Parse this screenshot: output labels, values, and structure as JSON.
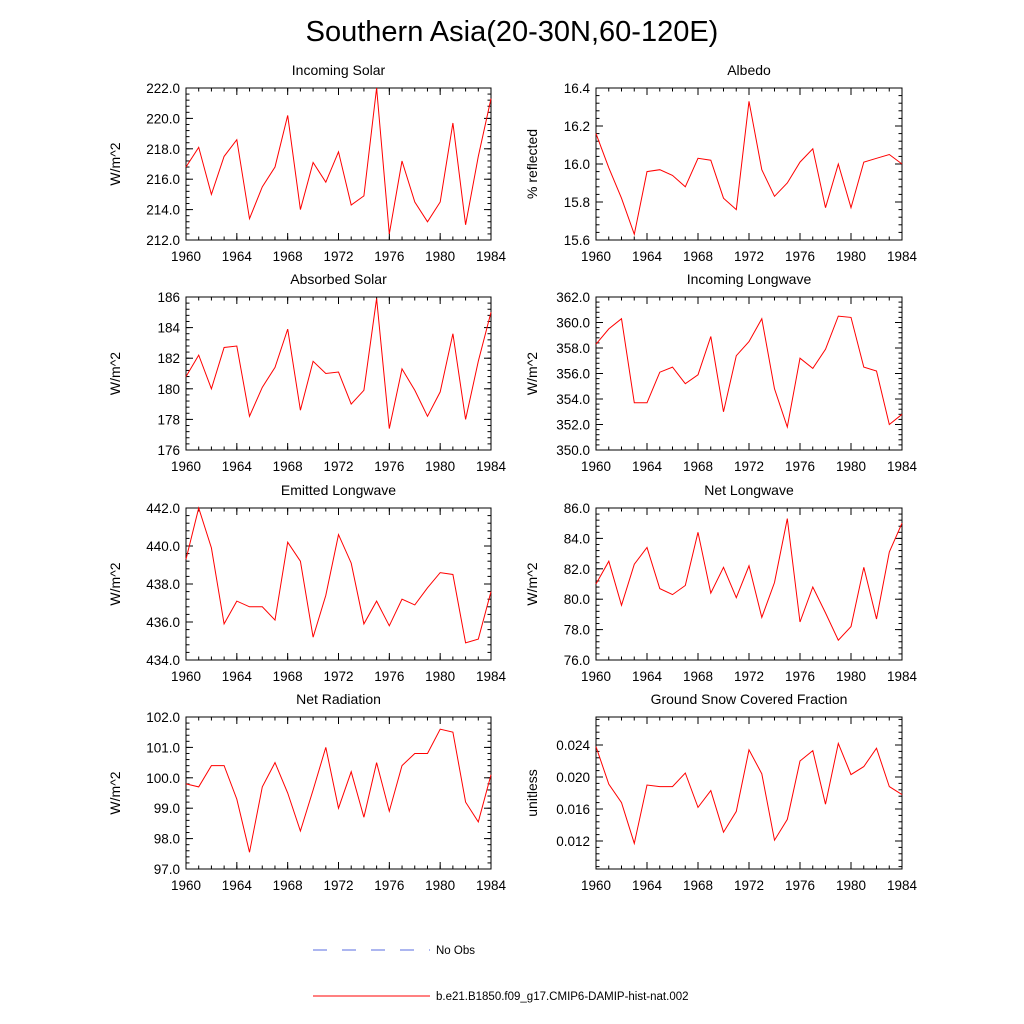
{
  "title": "Southern Asia(20-30N,60-120E)",
  "legend": [
    {
      "label": "No Obs",
      "color": "#5a6ee0",
      "dashed": true
    },
    {
      "label": "b.e21.B1850.f09_g17.CMIP6-DAMIP-hist-nat.002",
      "color": "#ff0000",
      "dashed": false
    }
  ],
  "chart_data": [
    {
      "type": "line",
      "title": "Incoming Solar",
      "xlabel": "",
      "ylabel": "W/m^2",
      "ylim": [
        212,
        222
      ],
      "xlim": [
        1960,
        1984
      ],
      "ytick_values": [
        212,
        214,
        216,
        218,
        220,
        222
      ],
      "ytick_labels": [
        "212.0",
        "214.0",
        "216.0",
        "218.0",
        "220.0",
        "222.0"
      ],
      "xtick_labels": [
        "1960",
        "1964",
        "1968",
        "1972",
        "1976",
        "1980",
        "1984"
      ],
      "x": [
        1960,
        1961,
        1962,
        1963,
        1964,
        1965,
        1966,
        1967,
        1968,
        1969,
        1970,
        1971,
        1972,
        1973,
        1974,
        1975,
        1976,
        1977,
        1978,
        1979,
        1980,
        1981,
        1982,
        1983,
        1984
      ],
      "series": [
        {
          "name": "b.e21.B1850.f09_g17.CMIP6-DAMIP-hist-nat.002",
          "color": "#ff0000",
          "values": [
            216.8,
            218.1,
            215.0,
            217.5,
            218.6,
            213.4,
            215.5,
            216.8,
            220.2,
            214.0,
            217.1,
            215.8,
            217.8,
            214.3,
            214.9,
            222.0,
            212.4,
            217.2,
            214.5,
            213.2,
            214.5,
            219.7,
            213.0,
            217.5,
            221.3
          ]
        }
      ]
    },
    {
      "type": "line",
      "title": "Albedo",
      "xlabel": "",
      "ylabel": "% reflected",
      "ylim": [
        15.6,
        16.4
      ],
      "xlim": [
        1960,
        1984
      ],
      "ytick_values": [
        15.6,
        15.8,
        16.0,
        16.2,
        16.4
      ],
      "ytick_labels": [
        "15.6",
        "15.8",
        "16.0",
        "16.2",
        "16.4"
      ],
      "xtick_labels": [
        "1960",
        "1964",
        "1968",
        "1972",
        "1976",
        "1980",
        "1984"
      ],
      "x": [
        1960,
        1961,
        1962,
        1963,
        1964,
        1965,
        1966,
        1967,
        1968,
        1969,
        1970,
        1971,
        1972,
        1973,
        1974,
        1975,
        1976,
        1977,
        1978,
        1979,
        1980,
        1981,
        1982,
        1983,
        1984
      ],
      "series": [
        {
          "name": "b.e21.B1850.f09_g17.CMIP6-DAMIP-hist-nat.002",
          "color": "#ff0000",
          "values": [
            16.16,
            15.98,
            15.82,
            15.63,
            15.96,
            15.97,
            15.94,
            15.88,
            16.03,
            16.02,
            15.82,
            15.76,
            16.33,
            15.97,
            15.83,
            15.9,
            16.01,
            16.08,
            15.77,
            16.0,
            15.77,
            16.01,
            16.03,
            16.05,
            16.0
          ]
        }
      ]
    },
    {
      "type": "line",
      "title": "Absorbed Solar",
      "xlabel": "",
      "ylabel": "W/m^2",
      "ylim": [
        176,
        186
      ],
      "xlim": [
        1960,
        1984
      ],
      "ytick_values": [
        176,
        178,
        180,
        182,
        184,
        186
      ],
      "ytick_labels": [
        "176",
        "178",
        "180",
        "182",
        "184",
        "186"
      ],
      "xtick_labels": [
        "1960",
        "1964",
        "1968",
        "1972",
        "1976",
        "1980",
        "1984"
      ],
      "x": [
        1960,
        1961,
        1962,
        1963,
        1964,
        1965,
        1966,
        1967,
        1968,
        1969,
        1970,
        1971,
        1972,
        1973,
        1974,
        1975,
        1976,
        1977,
        1978,
        1979,
        1980,
        1981,
        1982,
        1983,
        1984
      ],
      "series": [
        {
          "name": "b.e21.B1850.f09_g17.CMIP6-DAMIP-hist-nat.002",
          "color": "#ff0000",
          "values": [
            180.8,
            182.2,
            180.0,
            182.7,
            182.8,
            178.2,
            180.1,
            181.4,
            183.9,
            178.6,
            181.8,
            181.0,
            181.1,
            179.0,
            179.9,
            185.9,
            177.4,
            181.3,
            179.9,
            178.2,
            179.8,
            183.6,
            178.0,
            181.8,
            185.0
          ]
        }
      ]
    },
    {
      "type": "line",
      "title": "Incoming Longwave",
      "xlabel": "",
      "ylabel": "W/m^2",
      "ylim": [
        350,
        362
      ],
      "xlim": [
        1960,
        1984
      ],
      "ytick_values": [
        350,
        352,
        354,
        356,
        358,
        360,
        362
      ],
      "ytick_labels": [
        "350.0",
        "352.0",
        "354.0",
        "356.0",
        "358.0",
        "360.0",
        "362.0"
      ],
      "xtick_labels": [
        "1960",
        "1964",
        "1968",
        "1972",
        "1976",
        "1980",
        "1984"
      ],
      "x": [
        1960,
        1961,
        1962,
        1963,
        1964,
        1965,
        1966,
        1967,
        1968,
        1969,
        1970,
        1971,
        1972,
        1973,
        1974,
        1975,
        1976,
        1977,
        1978,
        1979,
        1980,
        1981,
        1982,
        1983,
        1984
      ],
      "series": [
        {
          "name": "b.e21.B1850.f09_g17.CMIP6-DAMIP-hist-nat.002",
          "color": "#ff0000",
          "values": [
            358.3,
            359.5,
            360.3,
            353.7,
            353.7,
            356.1,
            356.5,
            355.2,
            355.9,
            358.9,
            353.0,
            357.4,
            358.5,
            360.3,
            354.8,
            351.8,
            357.2,
            356.4,
            357.9,
            360.5,
            360.4,
            356.5,
            356.2,
            352.0,
            352.8
          ]
        }
      ]
    },
    {
      "type": "line",
      "title": "Emitted Longwave",
      "xlabel": "",
      "ylabel": "W/m^2",
      "ylim": [
        434,
        442
      ],
      "xlim": [
        1960,
        1984
      ],
      "ytick_values": [
        434,
        436,
        438,
        440,
        442
      ],
      "ytick_labels": [
        "434.0",
        "436.0",
        "438.0",
        "440.0",
        "442.0"
      ],
      "xtick_labels": [
        "1960",
        "1964",
        "1968",
        "1972",
        "1976",
        "1980",
        "1984"
      ],
      "x": [
        1960,
        1961,
        1962,
        1963,
        1964,
        1965,
        1966,
        1967,
        1968,
        1969,
        1970,
        1971,
        1972,
        1973,
        1974,
        1975,
        1976,
        1977,
        1978,
        1979,
        1980,
        1981,
        1982,
        1983,
        1984
      ],
      "series": [
        {
          "name": "b.e21.B1850.f09_g17.CMIP6-DAMIP-hist-nat.002",
          "color": "#ff0000",
          "values": [
            439.3,
            442.0,
            439.9,
            435.9,
            437.1,
            436.8,
            436.8,
            436.1,
            440.2,
            439.2,
            435.2,
            437.4,
            440.6,
            439.1,
            435.9,
            437.1,
            435.8,
            437.2,
            436.9,
            437.8,
            438.6,
            438.5,
            434.9,
            435.1,
            437.6
          ]
        }
      ]
    },
    {
      "type": "line",
      "title": "Net Longwave",
      "xlabel": "",
      "ylabel": "W/m^2",
      "ylim": [
        76,
        86
      ],
      "xlim": [
        1960,
        1984
      ],
      "ytick_values": [
        76,
        78,
        80,
        82,
        84,
        86
      ],
      "ytick_labels": [
        "76.0",
        "78.0",
        "80.0",
        "82.0",
        "84.0",
        "86.0"
      ],
      "xtick_labels": [
        "1960",
        "1964",
        "1968",
        "1972",
        "1976",
        "1980",
        "1984"
      ],
      "x": [
        1960,
        1961,
        1962,
        1963,
        1964,
        1965,
        1966,
        1967,
        1968,
        1969,
        1970,
        1971,
        1972,
        1973,
        1974,
        1975,
        1976,
        1977,
        1978,
        1979,
        1980,
        1981,
        1982,
        1983,
        1984
      ],
      "series": [
        {
          "name": "b.e21.B1850.f09_g17.CMIP6-DAMIP-hist-nat.002",
          "color": "#ff0000",
          "values": [
            81.0,
            82.5,
            79.6,
            82.3,
            83.4,
            80.7,
            80.3,
            80.9,
            84.4,
            80.4,
            82.1,
            80.1,
            82.2,
            78.8,
            81.1,
            85.3,
            78.5,
            80.8,
            79.1,
            77.3,
            78.2,
            82.1,
            78.7,
            83.1,
            85.0
          ]
        }
      ]
    },
    {
      "type": "line",
      "title": "Net Radiation",
      "xlabel": "",
      "ylabel": "W/m^2",
      "ylim": [
        97,
        102
      ],
      "xlim": [
        1960,
        1984
      ],
      "ytick_values": [
        97,
        98,
        99,
        100,
        101,
        102
      ],
      "ytick_labels": [
        "97.0",
        "98.0",
        "99.0",
        "100.0",
        "101.0",
        "102.0"
      ],
      "xtick_labels": [
        "1960",
        "1964",
        "1968",
        "1972",
        "1976",
        "1980",
        "1984"
      ],
      "x": [
        1960,
        1961,
        1962,
        1963,
        1964,
        1965,
        1966,
        1967,
        1968,
        1969,
        1970,
        1971,
        1972,
        1973,
        1974,
        1975,
        1976,
        1977,
        1978,
        1979,
        1980,
        1981,
        1982,
        1983,
        1984
      ],
      "series": [
        {
          "name": "b.e21.B1850.f09_g17.CMIP6-DAMIP-hist-nat.002",
          "color": "#ff0000",
          "values": [
            99.8,
            99.7,
            100.4,
            100.4,
            99.3,
            97.55,
            99.7,
            100.5,
            99.5,
            98.25,
            99.6,
            101.0,
            99.0,
            100.2,
            98.7,
            100.5,
            98.9,
            100.4,
            100.8,
            100.8,
            101.6,
            101.5,
            99.2,
            98.55,
            100.1
          ]
        }
      ]
    },
    {
      "type": "line",
      "title": "Ground Snow Covered Fraction",
      "xlabel": "",
      "ylabel": "unitless",
      "ylim": [
        0.0085,
        0.0275
      ],
      "xlim": [
        1960,
        1984
      ],
      "ytick_values": [
        0.012,
        0.016,
        0.02,
        0.024
      ],
      "ytick_labels": [
        "0.012",
        "0.016",
        "0.020",
        "0.024"
      ],
      "xtick_labels": [
        "1960",
        "1964",
        "1968",
        "1972",
        "1976",
        "1980",
        "1984"
      ],
      "x": [
        1960,
        1961,
        1962,
        1963,
        1964,
        1965,
        1966,
        1967,
        1968,
        1969,
        1970,
        1971,
        1972,
        1973,
        1974,
        1975,
        1976,
        1977,
        1978,
        1979,
        1980,
        1981,
        1982,
        1983,
        1984
      ],
      "series": [
        {
          "name": "b.e21.B1850.f09_g17.CMIP6-DAMIP-hist-nat.002",
          "color": "#ff0000",
          "values": [
            0.0238,
            0.0191,
            0.0168,
            0.0117,
            0.019,
            0.0188,
            0.0188,
            0.0205,
            0.0162,
            0.0183,
            0.0131,
            0.0157,
            0.0234,
            0.0204,
            0.0121,
            0.0147,
            0.022,
            0.0233,
            0.0166,
            0.0242,
            0.0203,
            0.0213,
            0.0236,
            0.0188,
            0.0178
          ]
        }
      ]
    }
  ]
}
